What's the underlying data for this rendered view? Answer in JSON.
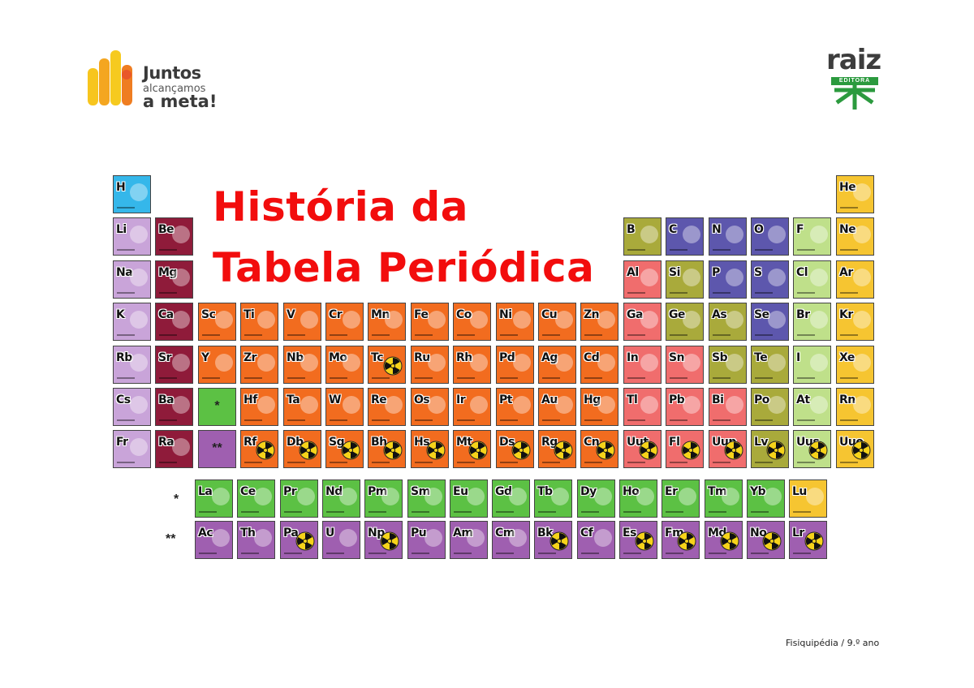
{
  "branding": {
    "left_logo": {
      "line1": "Juntos",
      "line2": "alcançamos",
      "line3": "a meta!"
    },
    "right_logo": {
      "word": "raiz",
      "sub": "EDITORA"
    }
  },
  "title": {
    "line1": "História da",
    "line2": "Tabela Periódica"
  },
  "footer": "Fisiquipédia / 9.º ano",
  "colors": {
    "title": "#f20d0d",
    "hydrogen": "#35b7ea",
    "alkali": "#c9a4d9",
    "alkaline_earth": "#8f1b3a",
    "transition": "#f26c1f",
    "post_transition": "#f06d6d",
    "metalloid": "#a9aa3b",
    "nonmetal": "#5d57ad",
    "halogen": "#bfe08a",
    "noble_gas": "#f6c531",
    "lanthanide": "#5cc144",
    "actinide": "#9f5fb0"
  },
  "markers": {
    "lanthanides": "*",
    "actinides": "**"
  },
  "main_table": [
    {
      "sym": "H",
      "col": 0,
      "row": 0,
      "cat": "hydrogen"
    },
    {
      "sym": "He",
      "col": 17,
      "row": 0,
      "cat": "noble_gas"
    },
    {
      "sym": "Li",
      "col": 0,
      "row": 1,
      "cat": "alkali"
    },
    {
      "sym": "Be",
      "col": 1,
      "row": 1,
      "cat": "alkaline_earth"
    },
    {
      "sym": "B",
      "col": 12,
      "row": 1,
      "cat": "metalloid"
    },
    {
      "sym": "C",
      "col": 13,
      "row": 1,
      "cat": "nonmetal"
    },
    {
      "sym": "N",
      "col": 14,
      "row": 1,
      "cat": "nonmetal"
    },
    {
      "sym": "O",
      "col": 15,
      "row": 1,
      "cat": "nonmetal"
    },
    {
      "sym": "F",
      "col": 16,
      "row": 1,
      "cat": "halogen"
    },
    {
      "sym": "Ne",
      "col": 17,
      "row": 1,
      "cat": "noble_gas"
    },
    {
      "sym": "Na",
      "col": 0,
      "row": 2,
      "cat": "alkali"
    },
    {
      "sym": "Mg",
      "col": 1,
      "row": 2,
      "cat": "alkaline_earth"
    },
    {
      "sym": "Al",
      "col": 12,
      "row": 2,
      "cat": "post_transition"
    },
    {
      "sym": "Si",
      "col": 13,
      "row": 2,
      "cat": "metalloid"
    },
    {
      "sym": "P",
      "col": 14,
      "row": 2,
      "cat": "nonmetal"
    },
    {
      "sym": "S",
      "col": 15,
      "row": 2,
      "cat": "nonmetal"
    },
    {
      "sym": "Cl",
      "col": 16,
      "row": 2,
      "cat": "halogen"
    },
    {
      "sym": "Ar",
      "col": 17,
      "row": 2,
      "cat": "noble_gas"
    },
    {
      "sym": "K",
      "col": 0,
      "row": 3,
      "cat": "alkali"
    },
    {
      "sym": "Ca",
      "col": 1,
      "row": 3,
      "cat": "alkaline_earth"
    },
    {
      "sym": "Sc",
      "col": 2,
      "row": 3,
      "cat": "transition"
    },
    {
      "sym": "Ti",
      "col": 3,
      "row": 3,
      "cat": "transition"
    },
    {
      "sym": "V",
      "col": 4,
      "row": 3,
      "cat": "transition"
    },
    {
      "sym": "Cr",
      "col": 5,
      "row": 3,
      "cat": "transition"
    },
    {
      "sym": "Mn",
      "col": 6,
      "row": 3,
      "cat": "transition"
    },
    {
      "sym": "Fe",
      "col": 7,
      "row": 3,
      "cat": "transition"
    },
    {
      "sym": "Co",
      "col": 8,
      "row": 3,
      "cat": "transition"
    },
    {
      "sym": "Ni",
      "col": 9,
      "row": 3,
      "cat": "transition"
    },
    {
      "sym": "Cu",
      "col": 10,
      "row": 3,
      "cat": "transition"
    },
    {
      "sym": "Zn",
      "col": 11,
      "row": 3,
      "cat": "transition"
    },
    {
      "sym": "Ga",
      "col": 12,
      "row": 3,
      "cat": "post_transition"
    },
    {
      "sym": "Ge",
      "col": 13,
      "row": 3,
      "cat": "metalloid"
    },
    {
      "sym": "As",
      "col": 14,
      "row": 3,
      "cat": "metalloid"
    },
    {
      "sym": "Se",
      "col": 15,
      "row": 3,
      "cat": "nonmetal"
    },
    {
      "sym": "Br",
      "col": 16,
      "row": 3,
      "cat": "halogen"
    },
    {
      "sym": "Kr",
      "col": 17,
      "row": 3,
      "cat": "noble_gas"
    },
    {
      "sym": "Rb",
      "col": 0,
      "row": 4,
      "cat": "alkali"
    },
    {
      "sym": "Sr",
      "col": 1,
      "row": 4,
      "cat": "alkaline_earth"
    },
    {
      "sym": "Y",
      "col": 2,
      "row": 4,
      "cat": "transition"
    },
    {
      "sym": "Zr",
      "col": 3,
      "row": 4,
      "cat": "transition"
    },
    {
      "sym": "Nb",
      "col": 4,
      "row": 4,
      "cat": "transition"
    },
    {
      "sym": "Mo",
      "col": 5,
      "row": 4,
      "cat": "transition"
    },
    {
      "sym": "Tc",
      "col": 6,
      "row": 4,
      "cat": "transition",
      "radioactive": true
    },
    {
      "sym": "Ru",
      "col": 7,
      "row": 4,
      "cat": "transition"
    },
    {
      "sym": "Rh",
      "col": 8,
      "row": 4,
      "cat": "transition"
    },
    {
      "sym": "Pd",
      "col": 9,
      "row": 4,
      "cat": "transition"
    },
    {
      "sym": "Ag",
      "col": 10,
      "row": 4,
      "cat": "transition"
    },
    {
      "sym": "Cd",
      "col": 11,
      "row": 4,
      "cat": "transition"
    },
    {
      "sym": "In",
      "col": 12,
      "row": 4,
      "cat": "post_transition"
    },
    {
      "sym": "Sn",
      "col": 13,
      "row": 4,
      "cat": "post_transition"
    },
    {
      "sym": "Sb",
      "col": 14,
      "row": 4,
      "cat": "metalloid"
    },
    {
      "sym": "Te",
      "col": 15,
      "row": 4,
      "cat": "metalloid"
    },
    {
      "sym": "I",
      "col": 16,
      "row": 4,
      "cat": "halogen"
    },
    {
      "sym": "Xe",
      "col": 17,
      "row": 4,
      "cat": "noble_gas"
    },
    {
      "sym": "Cs",
      "col": 0,
      "row": 5,
      "cat": "alkali"
    },
    {
      "sym": "Ba",
      "col": 1,
      "row": 5,
      "cat": "alkaline_earth"
    },
    {
      "sym": "*",
      "col": 2,
      "row": 5,
      "cat": "lanthanide",
      "placeholder": true
    },
    {
      "sym": "Hf",
      "col": 3,
      "row": 5,
      "cat": "transition"
    },
    {
      "sym": "Ta",
      "col": 4,
      "row": 5,
      "cat": "transition"
    },
    {
      "sym": "W",
      "col": 5,
      "row": 5,
      "cat": "transition"
    },
    {
      "sym": "Re",
      "col": 6,
      "row": 5,
      "cat": "transition"
    },
    {
      "sym": "Os",
      "col": 7,
      "row": 5,
      "cat": "transition"
    },
    {
      "sym": "Ir",
      "col": 8,
      "row": 5,
      "cat": "transition"
    },
    {
      "sym": "Pt",
      "col": 9,
      "row": 5,
      "cat": "transition"
    },
    {
      "sym": "Au",
      "col": 10,
      "row": 5,
      "cat": "transition"
    },
    {
      "sym": "Hg",
      "col": 11,
      "row": 5,
      "cat": "transition"
    },
    {
      "sym": "Tl",
      "col": 12,
      "row": 5,
      "cat": "post_transition"
    },
    {
      "sym": "Pb",
      "col": 13,
      "row": 5,
      "cat": "post_transition"
    },
    {
      "sym": "Bi",
      "col": 14,
      "row": 5,
      "cat": "post_transition"
    },
    {
      "sym": "Po",
      "col": 15,
      "row": 5,
      "cat": "metalloid"
    },
    {
      "sym": "At",
      "col": 16,
      "row": 5,
      "cat": "halogen"
    },
    {
      "sym": "Rn",
      "col": 17,
      "row": 5,
      "cat": "noble_gas"
    },
    {
      "sym": "Fr",
      "col": 0,
      "row": 6,
      "cat": "alkali"
    },
    {
      "sym": "Ra",
      "col": 1,
      "row": 6,
      "cat": "alkaline_earth"
    },
    {
      "sym": "**",
      "col": 2,
      "row": 6,
      "cat": "actinide",
      "placeholder": true
    },
    {
      "sym": "Rf",
      "col": 3,
      "row": 6,
      "cat": "transition",
      "radioactive": true
    },
    {
      "sym": "Db",
      "col": 4,
      "row": 6,
      "cat": "transition",
      "radioactive": true
    },
    {
      "sym": "Sg",
      "col": 5,
      "row": 6,
      "cat": "transition",
      "radioactive": true
    },
    {
      "sym": "Bh",
      "col": 6,
      "row": 6,
      "cat": "transition",
      "radioactive": true
    },
    {
      "sym": "Hs",
      "col": 7,
      "row": 6,
      "cat": "transition",
      "radioactive": true
    },
    {
      "sym": "Mt",
      "col": 8,
      "row": 6,
      "cat": "transition",
      "radioactive": true
    },
    {
      "sym": "Ds",
      "col": 9,
      "row": 6,
      "cat": "transition",
      "radioactive": true
    },
    {
      "sym": "Rg",
      "col": 10,
      "row": 6,
      "cat": "transition",
      "radioactive": true
    },
    {
      "sym": "Cn",
      "col": 11,
      "row": 6,
      "cat": "transition",
      "radioactive": true
    },
    {
      "sym": "Uut",
      "col": 12,
      "row": 6,
      "cat": "post_transition",
      "radioactive": true
    },
    {
      "sym": "Fl",
      "col": 13,
      "row": 6,
      "cat": "post_transition",
      "radioactive": true
    },
    {
      "sym": "Uup",
      "col": 14,
      "row": 6,
      "cat": "post_transition",
      "radioactive": true
    },
    {
      "sym": "Lv",
      "col": 15,
      "row": 6,
      "cat": "metalloid",
      "radioactive": true
    },
    {
      "sym": "Uus",
      "col": 16,
      "row": 6,
      "cat": "halogen",
      "radioactive": true
    },
    {
      "sym": "Uuo",
      "col": 17,
      "row": 6,
      "cat": "noble_gas",
      "radioactive": true
    }
  ],
  "lanthanides": [
    {
      "sym": "La"
    },
    {
      "sym": "Ce"
    },
    {
      "sym": "Pr"
    },
    {
      "sym": "Nd"
    },
    {
      "sym": "Pm"
    },
    {
      "sym": "Sm"
    },
    {
      "sym": "Eu"
    },
    {
      "sym": "Gd"
    },
    {
      "sym": "Tb"
    },
    {
      "sym": "Dy"
    },
    {
      "sym": "Ho"
    },
    {
      "sym": "Er"
    },
    {
      "sym": "Tm"
    },
    {
      "sym": "Yb"
    },
    {
      "sym": "Lu",
      "cat": "noble_gas"
    }
  ],
  "actinides": [
    {
      "sym": "Ac"
    },
    {
      "sym": "Th"
    },
    {
      "sym": "Pa",
      "radioactive": true
    },
    {
      "sym": "U"
    },
    {
      "sym": "Np",
      "radioactive": true
    },
    {
      "sym": "Pu"
    },
    {
      "sym": "Am"
    },
    {
      "sym": "Cm"
    },
    {
      "sym": "Bk",
      "radioactive": true
    },
    {
      "sym": "Cf"
    },
    {
      "sym": "Es",
      "radioactive": true
    },
    {
      "sym": "Fm",
      "radioactive": true
    },
    {
      "sym": "Md",
      "radioactive": true
    },
    {
      "sym": "No",
      "radioactive": true
    },
    {
      "sym": "Lr",
      "radioactive": true
    }
  ]
}
